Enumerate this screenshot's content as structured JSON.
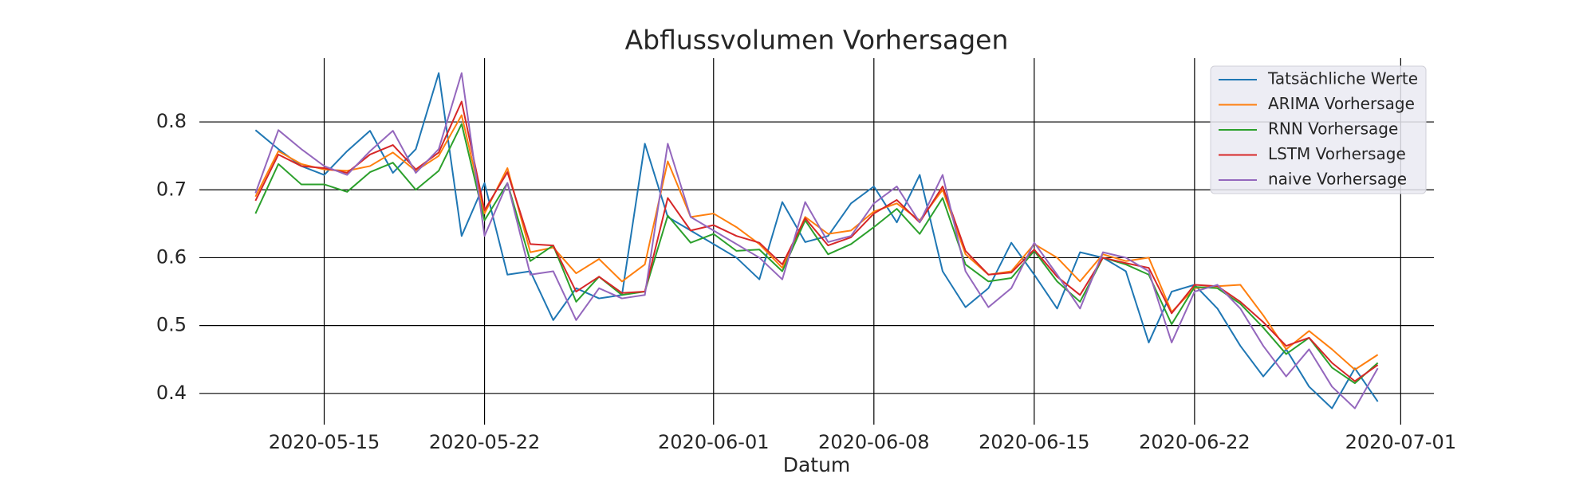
{
  "chart_data": {
    "type": "line",
    "title": "Abflussvolumen Vorhersagen",
    "xlabel": "Datum",
    "x": [
      "2020-05-12",
      "2020-05-13",
      "2020-05-14",
      "2020-05-15",
      "2020-05-16",
      "2020-05-17",
      "2020-05-18",
      "2020-05-19",
      "2020-05-20",
      "2020-05-21",
      "2020-05-22",
      "2020-05-23",
      "2020-05-24",
      "2020-05-25",
      "2020-05-26",
      "2020-05-27",
      "2020-05-28",
      "2020-05-29",
      "2020-05-30",
      "2020-05-31",
      "2020-06-01",
      "2020-06-02",
      "2020-06-03",
      "2020-06-04",
      "2020-06-05",
      "2020-06-06",
      "2020-06-07",
      "2020-06-08",
      "2020-06-09",
      "2020-06-10",
      "2020-06-11",
      "2020-06-12",
      "2020-06-13",
      "2020-06-14",
      "2020-06-15",
      "2020-06-16",
      "2020-06-17",
      "2020-06-18",
      "2020-06-19",
      "2020-06-20",
      "2020-06-21",
      "2020-06-22",
      "2020-06-23",
      "2020-06-24",
      "2020-06-25",
      "2020-06-26",
      "2020-06-27",
      "2020-06-28",
      "2020-06-29",
      "2020-06-30"
    ],
    "series": [
      {
        "name": "Tatsächliche Werte",
        "color": "#1f77b4",
        "values": [
          0.788,
          0.76,
          0.735,
          0.722,
          0.757,
          0.787,
          0.725,
          0.76,
          0.872,
          0.632,
          0.71,
          0.575,
          0.58,
          0.508,
          0.555,
          0.54,
          0.545,
          0.768,
          0.66,
          0.64,
          0.62,
          0.6,
          0.568,
          0.682,
          0.623,
          0.632,
          0.68,
          0.705,
          0.652,
          0.722,
          0.58,
          0.527,
          0.555,
          0.622,
          0.575,
          0.525,
          0.608,
          0.6,
          0.58,
          0.475,
          0.55,
          0.56,
          0.525,
          0.47,
          0.425,
          0.465,
          0.41,
          0.378,
          0.437,
          0.388
        ]
      },
      {
        "name": "ARIMA Vorhersage",
        "color": "#ff7f0e",
        "values": [
          0.69,
          0.757,
          0.738,
          0.73,
          0.728,
          0.735,
          0.755,
          0.728,
          0.75,
          0.81,
          0.665,
          0.732,
          0.608,
          0.615,
          0.577,
          0.598,
          0.565,
          0.59,
          0.742,
          0.66,
          0.665,
          0.645,
          0.62,
          0.585,
          0.66,
          0.635,
          0.64,
          0.668,
          0.68,
          0.655,
          0.7,
          0.605,
          0.575,
          0.58,
          0.62,
          0.6,
          0.565,
          0.605,
          0.595,
          0.6,
          0.52,
          0.555,
          0.558,
          0.56,
          0.515,
          0.465,
          0.492,
          0.465,
          0.435,
          0.457
        ]
      },
      {
        "name": "RNN Vorhersage",
        "color": "#2ca02c",
        "values": [
          0.665,
          0.738,
          0.708,
          0.708,
          0.697,
          0.726,
          0.74,
          0.7,
          0.728,
          0.797,
          0.655,
          0.71,
          0.595,
          0.618,
          0.535,
          0.572,
          0.545,
          0.55,
          0.662,
          0.622,
          0.635,
          0.61,
          0.612,
          0.58,
          0.655,
          0.605,
          0.62,
          0.645,
          0.672,
          0.635,
          0.688,
          0.59,
          0.565,
          0.57,
          0.61,
          0.565,
          0.535,
          0.6,
          0.59,
          0.575,
          0.502,
          0.557,
          0.555,
          0.532,
          0.497,
          0.458,
          0.482,
          0.438,
          0.415,
          0.445
        ]
      },
      {
        "name": "LSTM Vorhersage",
        "color": "#d62728",
        "values": [
          0.684,
          0.752,
          0.735,
          0.732,
          0.725,
          0.752,
          0.766,
          0.73,
          0.755,
          0.83,
          0.67,
          0.726,
          0.62,
          0.618,
          0.55,
          0.572,
          0.548,
          0.55,
          0.688,
          0.64,
          0.648,
          0.632,
          0.622,
          0.59,
          0.658,
          0.618,
          0.63,
          0.665,
          0.685,
          0.652,
          0.705,
          0.61,
          0.575,
          0.578,
          0.612,
          0.572,
          0.545,
          0.6,
          0.592,
          0.585,
          0.518,
          0.56,
          0.558,
          0.535,
          0.505,
          0.47,
          0.482,
          0.445,
          0.418,
          0.442
        ]
      },
      {
        "name": "naive Vorhersage",
        "color": "#9467bd",
        "values": [
          0.695,
          0.788,
          0.76,
          0.735,
          0.722,
          0.757,
          0.787,
          0.725,
          0.76,
          0.872,
          0.632,
          0.71,
          0.575,
          0.58,
          0.508,
          0.555,
          0.54,
          0.545,
          0.768,
          0.66,
          0.64,
          0.62,
          0.6,
          0.568,
          0.682,
          0.623,
          0.632,
          0.68,
          0.705,
          0.652,
          0.722,
          0.58,
          0.527,
          0.555,
          0.622,
          0.575,
          0.525,
          0.608,
          0.6,
          0.58,
          0.475,
          0.55,
          0.56,
          0.525,
          0.47,
          0.425,
          0.465,
          0.41,
          0.378,
          0.437
        ]
      }
    ],
    "xlim": [
      "2020-05-09T13:12Z",
      "2020-07-02T10:48Z"
    ],
    "xticks": [
      "2020-05-15",
      "2020-05-22",
      "2020-06-01",
      "2020-06-08",
      "2020-06-15",
      "2020-06-22",
      "2020-07-01"
    ],
    "ylim": [
      0.354,
      0.894
    ],
    "yticks": [
      0.4,
      0.5,
      0.6,
      0.7,
      0.8
    ],
    "grid": true,
    "legend": "upper right"
  }
}
